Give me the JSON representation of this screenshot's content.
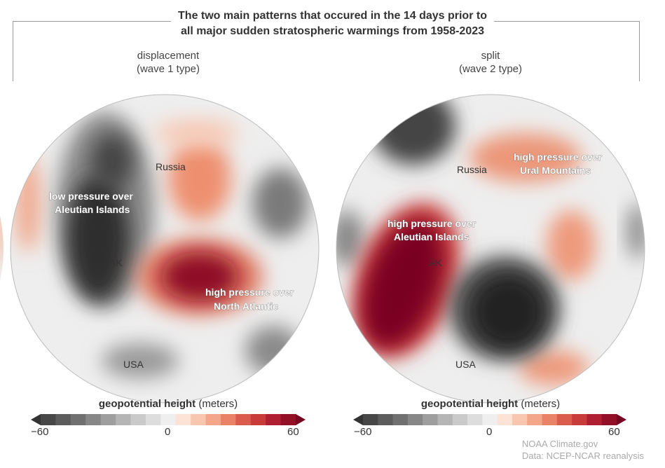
{
  "title": [
    "The two main patterns that occured in the 14 days prior to",
    "all major sudden stratospheric warmings from 1958-2023"
  ],
  "panels": [
    {
      "name": "displacement",
      "subtitle": "(wave 1 type)",
      "labels": {
        "low": [
          "low pressure over",
          "Aleutian Islands"
        ],
        "high": [
          "high pressure over",
          "North Atlantic"
        ]
      },
      "places": [
        "Russia",
        "AK",
        "USA"
      ]
    },
    {
      "name": "split",
      "subtitle": "(wave 2 type)",
      "labels": {
        "high1": [
          "high pressure over",
          "Aleutian Islands"
        ],
        "high2": [
          "high pressure over",
          "Ural Mountains"
        ]
      },
      "places": [
        "Russia",
        "AK",
        "USA"
      ]
    }
  ],
  "colorbar": {
    "title_bold": "geopotential height",
    "title_unit": "(meters)",
    "min": "−60",
    "mid": "0",
    "max": "60",
    "colors": [
      "#333333",
      "#474747",
      "#5c5c5c",
      "#707070",
      "#878787",
      "#9e9e9e",
      "#b5b5b5",
      "#cacaca",
      "#dddddd",
      "#efefef",
      "#fde3d6",
      "#f9c7b0",
      "#f4a68a",
      "#ea8267",
      "#db5c4c",
      "#c93a3a",
      "#b01f31",
      "#920f26",
      "#760622"
    ]
  },
  "credit": [
    "NOAA Climate.gov",
    "Data: NCEP-NCAR reanalysis"
  ]
}
